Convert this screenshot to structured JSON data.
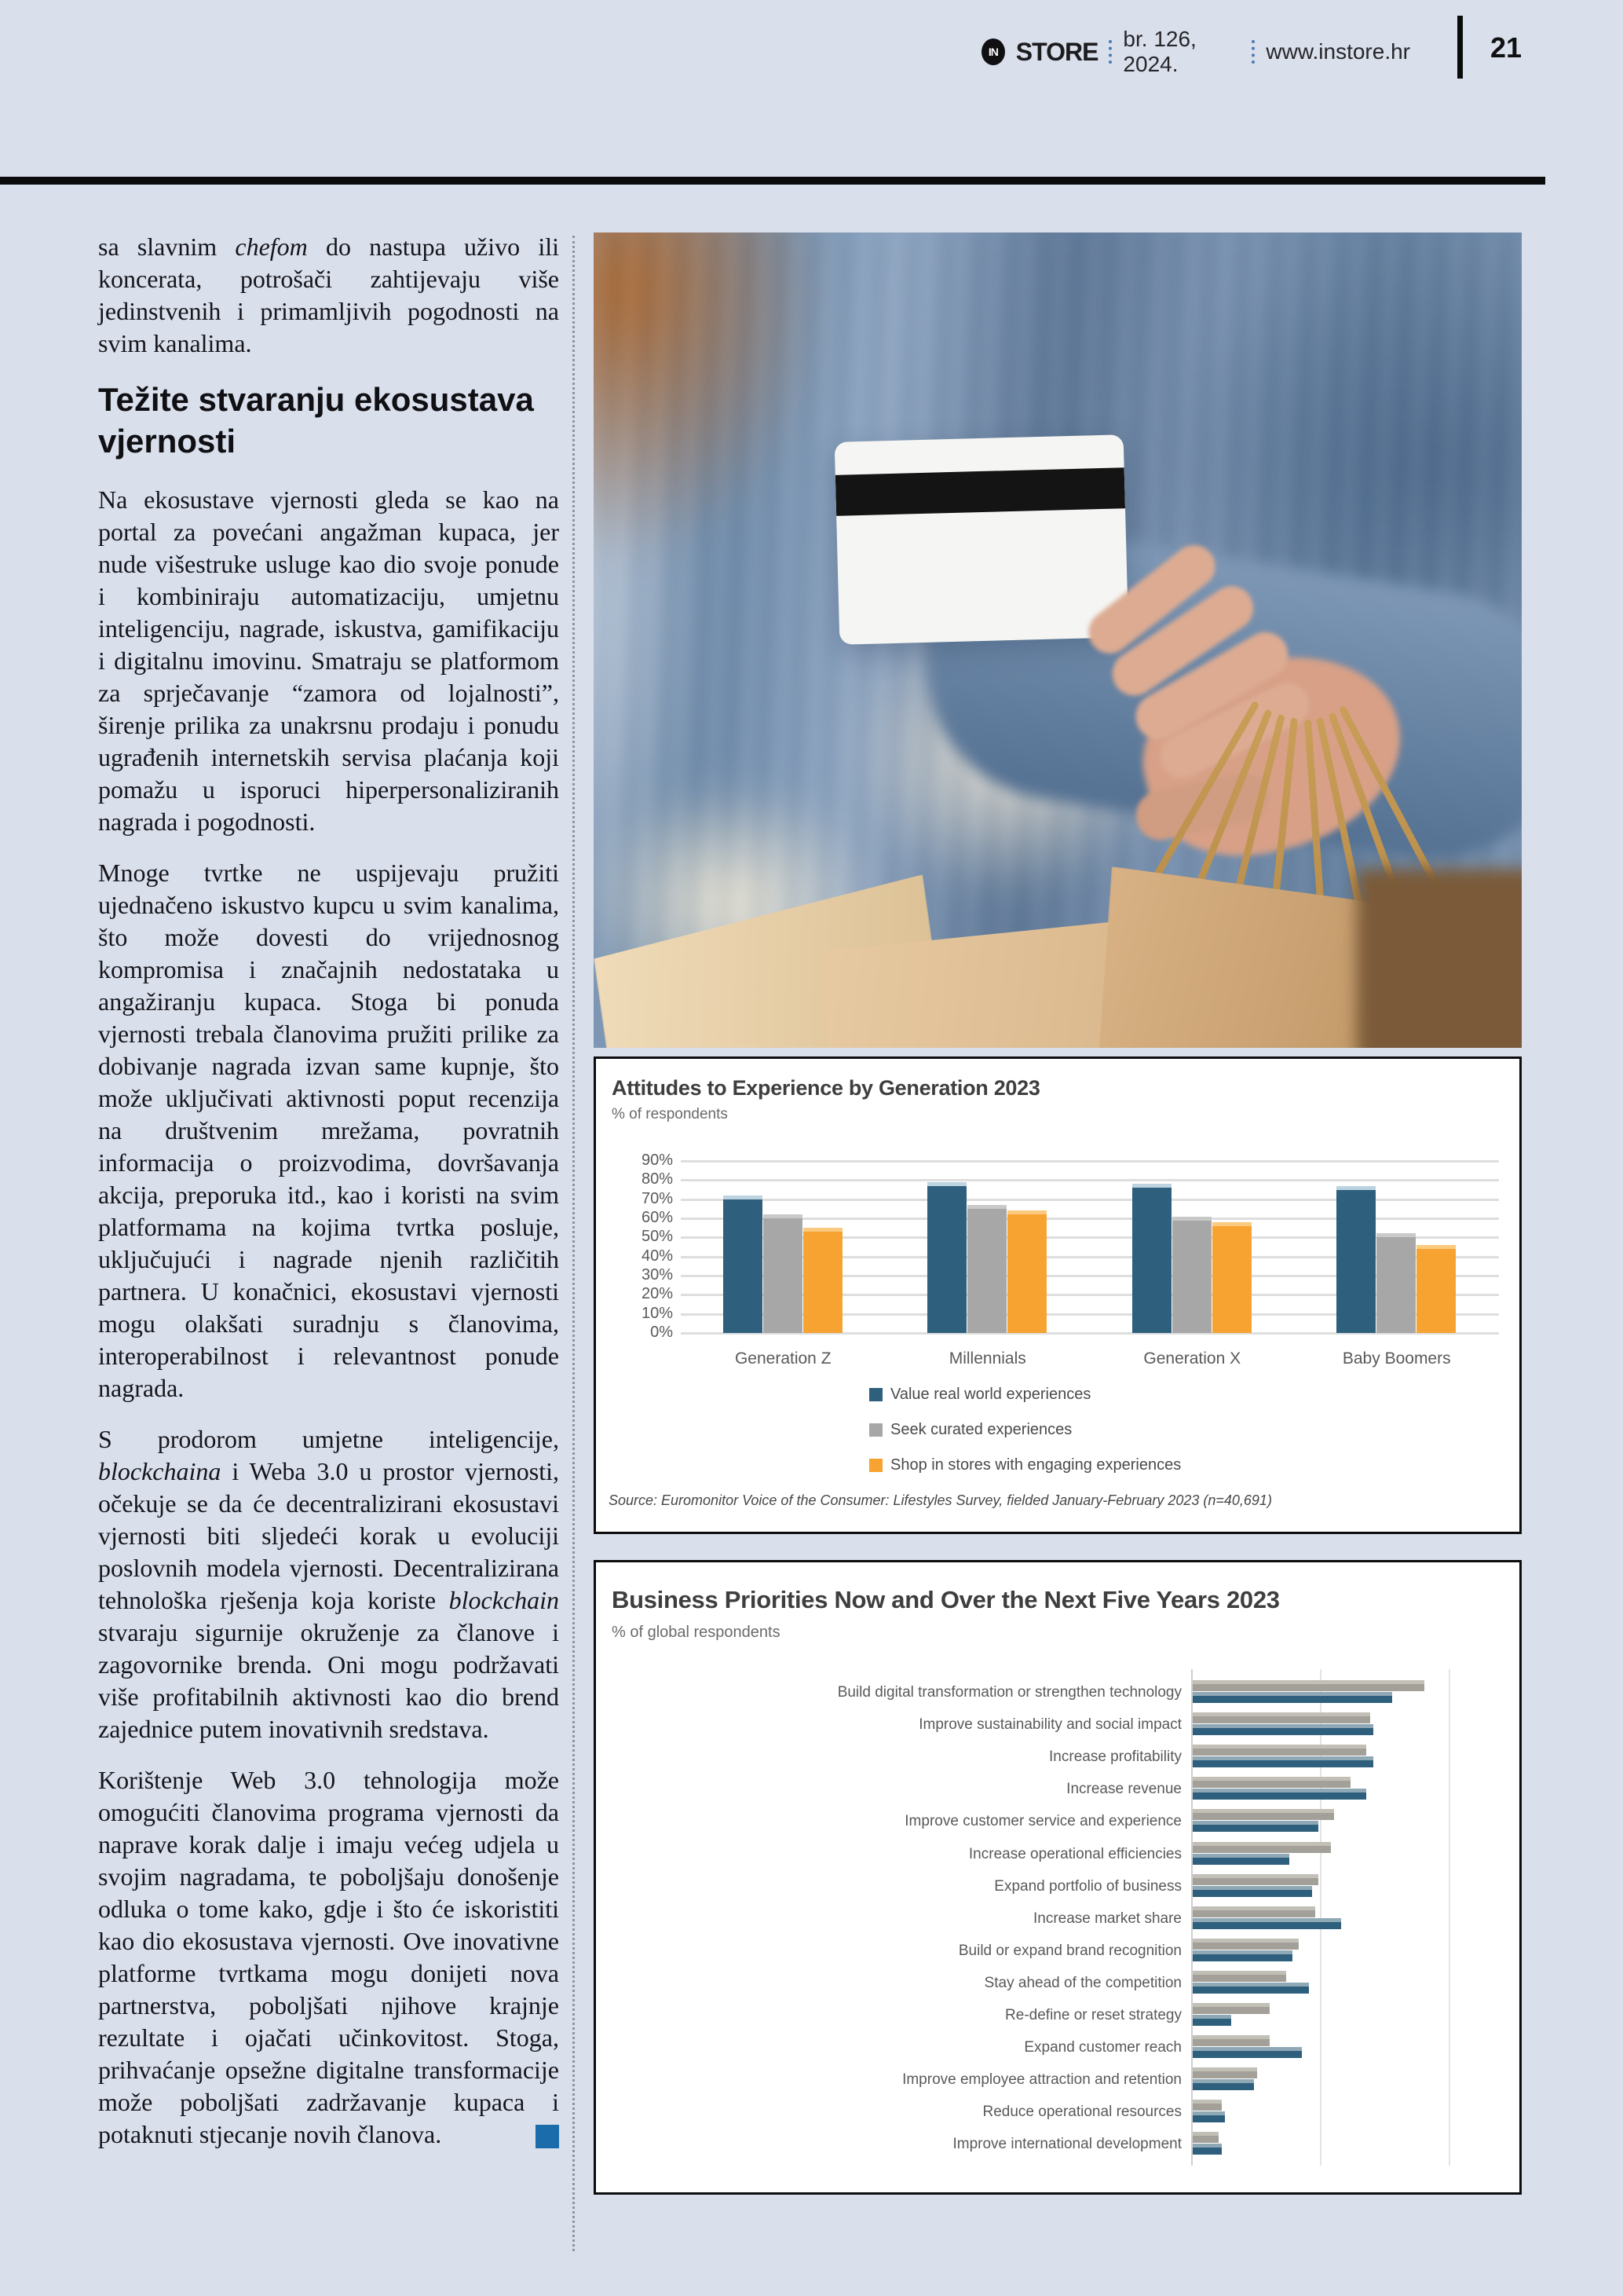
{
  "header": {
    "logo_text": "IN",
    "brand": "STORE",
    "issue": "br. 126, 2024.",
    "website": "www.instore.hr",
    "page_number": "21"
  },
  "article": {
    "lead": [
      {
        "text": "sa slavnim "
      },
      {
        "text": "chefom",
        "italic": true
      },
      {
        "text": " do nastupa uživo ili koncerata, potrošači zahtijevaju više jedinstvenih i primamljivih pogodnosti na svim kanalima."
      }
    ],
    "heading": "Težite stvaranju ekosustava vjernosti",
    "paragraphs": [
      [
        {
          "text": "Na ekosustave vjernosti gleda se kao na portal za povećani angažman kupaca, jer nude višestruke usluge kao dio svoje ponude i kombiniraju automatizaciju, umjetnu inteligenciju, nagrade, iskustva, gamifikaciju i digitalnu imovinu. Smatraju se platformom za sprječavanje “zamora od lojalnosti”, širenje prilika za unakrsnu prodaju i ponudu ugrađenih internetskih servisa plaćanja koji pomažu u isporuci hiperpersonaliziranih nagrada i pogodnosti."
        }
      ],
      [
        {
          "text": "Mnoge tvrtke ne uspijevaju pružiti ujednačeno iskustvo kupcu u svim kanalima, što može dovesti do vrijednosnog kompromisa i značajnih nedostataka u angažiranju kupaca. Stoga bi ponuda vjernosti trebala članovima pružiti prilike za dobivanje nagrada izvan same kupnje, što može uključivati aktivnosti poput recenzija na društvenim mrežama, povratnih informacija o proizvodima, dovršavanja akcija, preporuka itd., kao i koristi na svim platformama na kojima tvrtka posluje, uključujući i nagrade njenih različitih partnera. U konačnici, ekosustavi vjernosti mogu olakšati suradnju s članovima, interoperabilnost i relevantnost ponude nagrada."
        }
      ],
      [
        {
          "text": "S prodorom umjetne inteligencije, "
        },
        {
          "text": "blockchaina",
          "italic": true
        },
        {
          "text": " i Weba 3.0 u prostor vjernosti, očekuje se da će decentralizirani ekosustavi vjernosti biti sljedeći korak u evoluciji poslovnih modela vjernosti. Decentralizirana tehnološka rješenja koja koriste "
        },
        {
          "text": "blockchain",
          "italic": true
        },
        {
          "text": " stvaraju sigurnije okruženje za članove i zagovornike brenda. Oni mogu podržavati više profitabilnih aktivnosti kao dio brend zajednice putem inovativnih sredstava."
        }
      ],
      [
        {
          "text": "Korištenje Web 3.0 tehnologija može omogućiti članovima programa vjernosti da naprave korak dalje i imaju većeg udjela u svojim nagradama, te poboljšaju donošenje odluka o tome kako, gdje i što će iskoristiti kao dio ekosustava vjernosti. Ove inovativne platforme tvrtkama mogu donijeti nova partnerstva, poboljšati njihove krajnje rezultate i ojačati učinkovitost. Stoga, prihvaćanje opsežne digitalne transformacije može poboljšati zadržavanje kupaca i potaknuti stjecanje novih članova."
        }
      ]
    ],
    "endmark_color": "#1b6cab"
  },
  "chart_data": [
    {
      "type": "bar",
      "orientation": "vertical",
      "title": "Attitudes to Experience by Generation 2023",
      "subtitle": "% of respondents",
      "categories": [
        "Generation Z",
        "Millennials",
        "Generation X",
        "Baby Boomers"
      ],
      "series": [
        {
          "name": "Value real world experiences",
          "color": "#2e5f7d",
          "cap": "#bdd3df",
          "values": [
            72,
            79,
            78,
            77
          ]
        },
        {
          "name": "Seek curated experiences",
          "color": "#a7a7a7",
          "cap": "#c9c9c9",
          "values": [
            62,
            67,
            61,
            52
          ]
        },
        {
          "name": "Shop in stores with engaging experiences",
          "color": "#f6a332",
          "cap": "#fbca7e",
          "values": [
            55,
            64,
            58,
            46
          ]
        }
      ],
      "ylim": [
        0,
        90
      ],
      "yticks": [
        "0%",
        "10%",
        "20%",
        "30%",
        "40%",
        "50%",
        "60%",
        "70%",
        "80%",
        "90%"
      ],
      "grid": true,
      "legend_position": "bottom",
      "source": "Source: Euromonitor Voice of the Consumer: Lifestyles Survey, fielded January-February 2023 (n=40,691)"
    },
    {
      "type": "bar",
      "orientation": "horizontal",
      "title": "Business Priorities Now and Over the Next Five Years 2023",
      "subtitle": "% of global respondents",
      "categories": [
        "Build digital transformation or strengthen technology",
        "Improve sustainability and social impact",
        "Increase profitability",
        "Increase revenue",
        "Improve customer service and experience",
        "Increase operational efficiencies",
        "Expand portfolio of business",
        "Increase market share",
        "Build or expand brand recognition",
        "Stay ahead of the competition",
        "Re-define or reset strategy",
        "Expand customer reach",
        "Improve employee attraction and retention",
        "Reduce operational resources",
        "Improve international development"
      ],
      "series": [
        {
          "name": "gray_bar",
          "color": "#a3a099",
          "cap": "#c2bfb7",
          "values": [
            36,
            27.5,
            27,
            24.5,
            22,
            21.5,
            19.5,
            19,
            16.5,
            14.5,
            12,
            12,
            10,
            4.5,
            4
          ]
        },
        {
          "name": "navy_bar",
          "color": "#2e5f7d",
          "cap": "#8fa8b6",
          "values": [
            31,
            28,
            28,
            27,
            19.5,
            15,
            18.5,
            23,
            15.5,
            18,
            6,
            17,
            9.5,
            5,
            4.5
          ]
        }
      ],
      "xlim": [
        0,
        50
      ],
      "grid_values_pct": [
        20,
        40
      ]
    }
  ]
}
